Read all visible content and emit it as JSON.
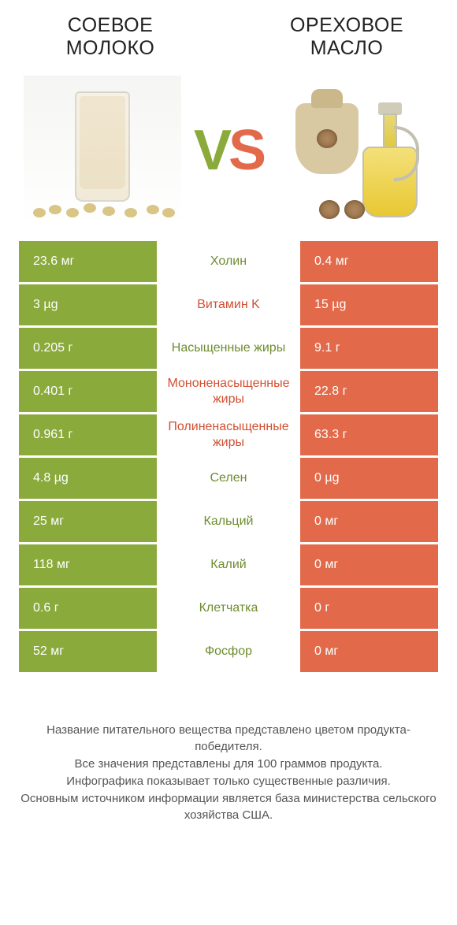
{
  "colors": {
    "green": "#8aaa3b",
    "orange": "#e26a4a",
    "green_text": "#6e8c2e",
    "orange_text": "#d24f30",
    "white": "#ffffff"
  },
  "products": {
    "left": {
      "title": "Соевое молоко"
    },
    "right": {
      "title": "Ореховое масло"
    }
  },
  "vs": {
    "v": "V",
    "s": "S"
  },
  "rows": [
    {
      "left": "23.6 мг",
      "label": "Холин",
      "right": "0.4 мг",
      "winner": "left"
    },
    {
      "left": "3 µg",
      "label": "Витамин K",
      "right": "15 µg",
      "winner": "right"
    },
    {
      "left": "0.205 г",
      "label": "Насыщенные жиры",
      "right": "9.1 г",
      "winner": "left"
    },
    {
      "left": "0.401 г",
      "label": "Мононенасыщенные жиры",
      "right": "22.8 г",
      "winner": "right"
    },
    {
      "left": "0.961 г",
      "label": "Полиненасыщенные жиры",
      "right": "63.3 г",
      "winner": "right"
    },
    {
      "left": "4.8 µg",
      "label": "Селен",
      "right": "0 µg",
      "winner": "left"
    },
    {
      "left": "25 мг",
      "label": "Кальций",
      "right": "0 мг",
      "winner": "left"
    },
    {
      "left": "118 мг",
      "label": "Калий",
      "right": "0 мг",
      "winner": "left"
    },
    {
      "left": "0.6 г",
      "label": "Клетчатка",
      "right": "0 г",
      "winner": "left"
    },
    {
      "left": "52 мг",
      "label": "Фосфор",
      "right": "0 мг",
      "winner": "left"
    }
  ],
  "footer": {
    "line1": "Название питательного вещества представлено цветом продукта-победителя.",
    "line2": "Все значения представлены для 100 граммов продукта.",
    "line3": "Инфографика показывает только существенные различия.",
    "line4": "Основным источником информации является база министерства сельского хозяйства США."
  }
}
